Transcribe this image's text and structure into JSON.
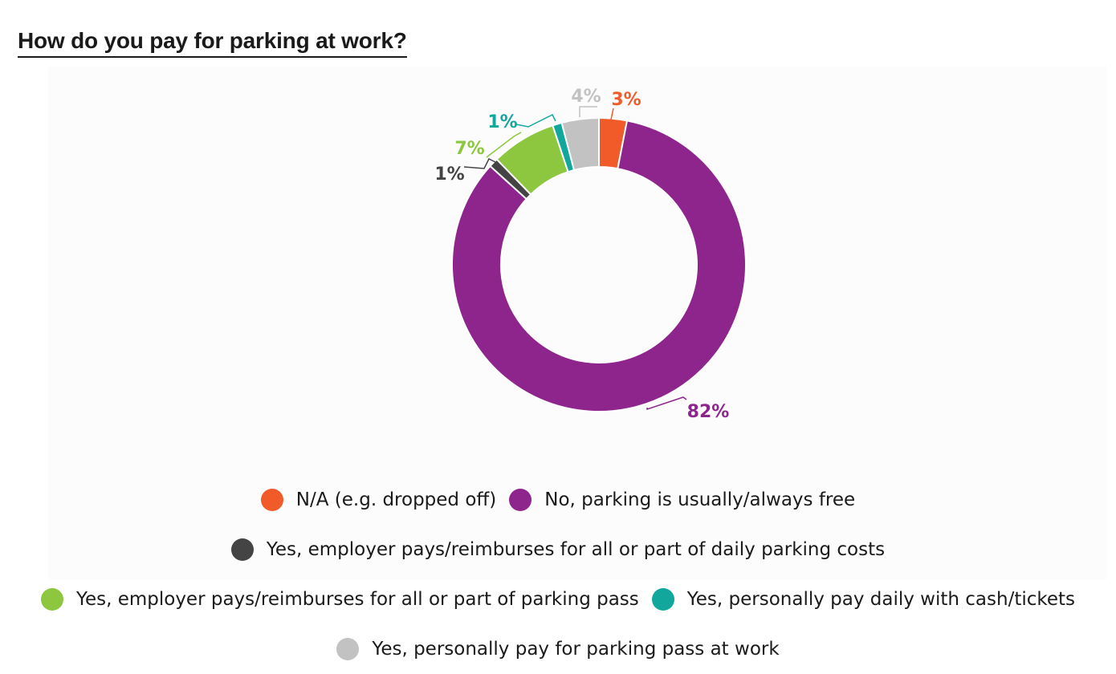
{
  "title": "How do you pay for parking at work?",
  "chart_data": {
    "type": "pie",
    "variant": "donut",
    "categories": [
      "N/A (e.g. dropped off)",
      "No, parking is usually/always free",
      "Yes, employer pays/reimburses for all or part of daily parking costs",
      "Yes, employer pays/reimburses for all or part of parking pass",
      "Yes, personally pay daily with cash/tickets",
      "Yes, personally pay for parking pass at work"
    ],
    "values": [
      3,
      82,
      1,
      7,
      1,
      4
    ],
    "value_labels": [
      "3%",
      "82%",
      "1%",
      "7%",
      "1%",
      "4%"
    ],
    "colors": [
      "#f15a29",
      "#8e258d",
      "#444444",
      "#8dc63f",
      "#12a79d",
      "#c2c2c2"
    ],
    "legend_position": "bottom"
  },
  "legend_rows": [
    [
      0,
      1
    ],
    [
      2
    ],
    [
      3,
      4
    ],
    [
      5
    ]
  ]
}
